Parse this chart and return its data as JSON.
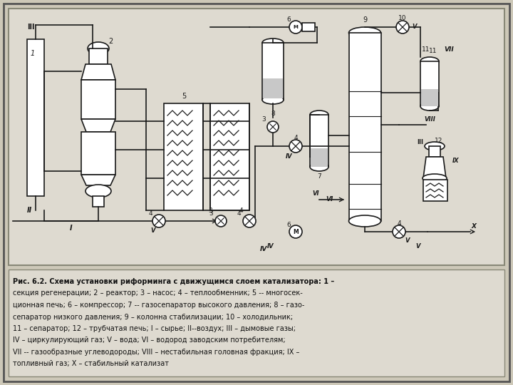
{
  "caption_lines": [
    "Рис. 6.2. Схема установки риформинга с движущимся слоем катализатора: 1 –",
    "секция регенерации; 2 – реактор; 3 – насос; 4 – теплообменник; 5 -- многосек-",
    "ционная печь; 6 – компрессор; 7 -- газосепаратор высокого давления; 8 – газо-",
    "сепаратор низкого давления; 9 – колонна стабилизации; 10 – холодильник;",
    "11 – сепаратор; 12 – трубчатая печь; I – сырье; II--воздух; III – дымовые газы;",
    "IV – циркулирующий газ; V – вода; VI – водород заводским потребителям;",
    "VII -- газообразные углеводороды; VIII – нестабильная головная фракция; IX –",
    "топливный газ; X – стабильный катализат"
  ],
  "bg_color": "#cdc8b8",
  "diagram_bg": "#dedad0",
  "line_color": "#1a1a1a",
  "text_color": "#111111"
}
